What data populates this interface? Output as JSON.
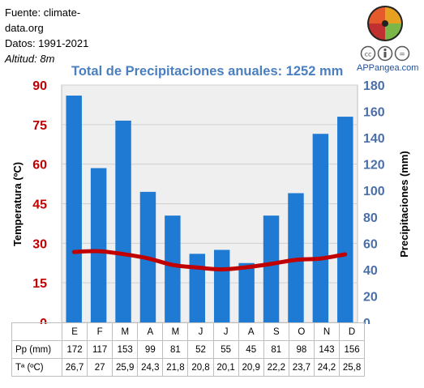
{
  "source": {
    "line1": "Fuente: climate-",
    "line2": "data.org",
    "datos": "Datos: 1991-2021",
    "altitud": "Altitud: 8m"
  },
  "logo": {
    "icon": "puzzle-logo-icon",
    "cc_icon": "creative-commons-icon",
    "site": "APPangea.com"
  },
  "chart_data": {
    "type": "bar",
    "title": "Total de Precipitaciones anuales: 1252 mm",
    "categories": [
      "E",
      "F",
      "M",
      "A",
      "M",
      "J",
      "J",
      "A",
      "S",
      "O",
      "N",
      "D"
    ],
    "series": [
      {
        "name": "Pp (mm)",
        "type": "bar",
        "axis": "right",
        "color": "#1f7ad4",
        "values": [
          172,
          117,
          153,
          99,
          81,
          52,
          55,
          45,
          81,
          98,
          143,
          156
        ]
      },
      {
        "name": "Tª (ºC)",
        "type": "line",
        "axis": "left",
        "color": "#c00000",
        "values": [
          26.7,
          27,
          25.9,
          24.3,
          21.8,
          20.8,
          20.1,
          20.9,
          22.2,
          23.7,
          24.2,
          25.8
        ]
      }
    ],
    "ylabel_left": "Temperatura (ºC)",
    "ylabel_right": "Precipitaciones (mm)",
    "ylim_left": [
      0,
      90
    ],
    "ylim_right": [
      0,
      180
    ],
    "yticks_left": [
      "0",
      "15",
      "30",
      "45",
      "60",
      "75",
      "90"
    ],
    "yticks_right": [
      "0",
      "20",
      "40",
      "60",
      "80",
      "100",
      "120",
      "140",
      "160",
      "180"
    ],
    "grid": true
  },
  "table": {
    "rows": [
      {
        "label": "Pp (mm)",
        "values": [
          "172",
          "117",
          "153",
          "99",
          "81",
          "52",
          "55",
          "45",
          "81",
          "98",
          "143",
          "156"
        ]
      },
      {
        "label": "Tª (ºC)",
        "values": [
          "26,7",
          "27",
          "25,9",
          "24,3",
          "21,8",
          "20,8",
          "20,1",
          "20,9",
          "22,2",
          "23,7",
          "24,2",
          "25,8"
        ]
      }
    ]
  }
}
